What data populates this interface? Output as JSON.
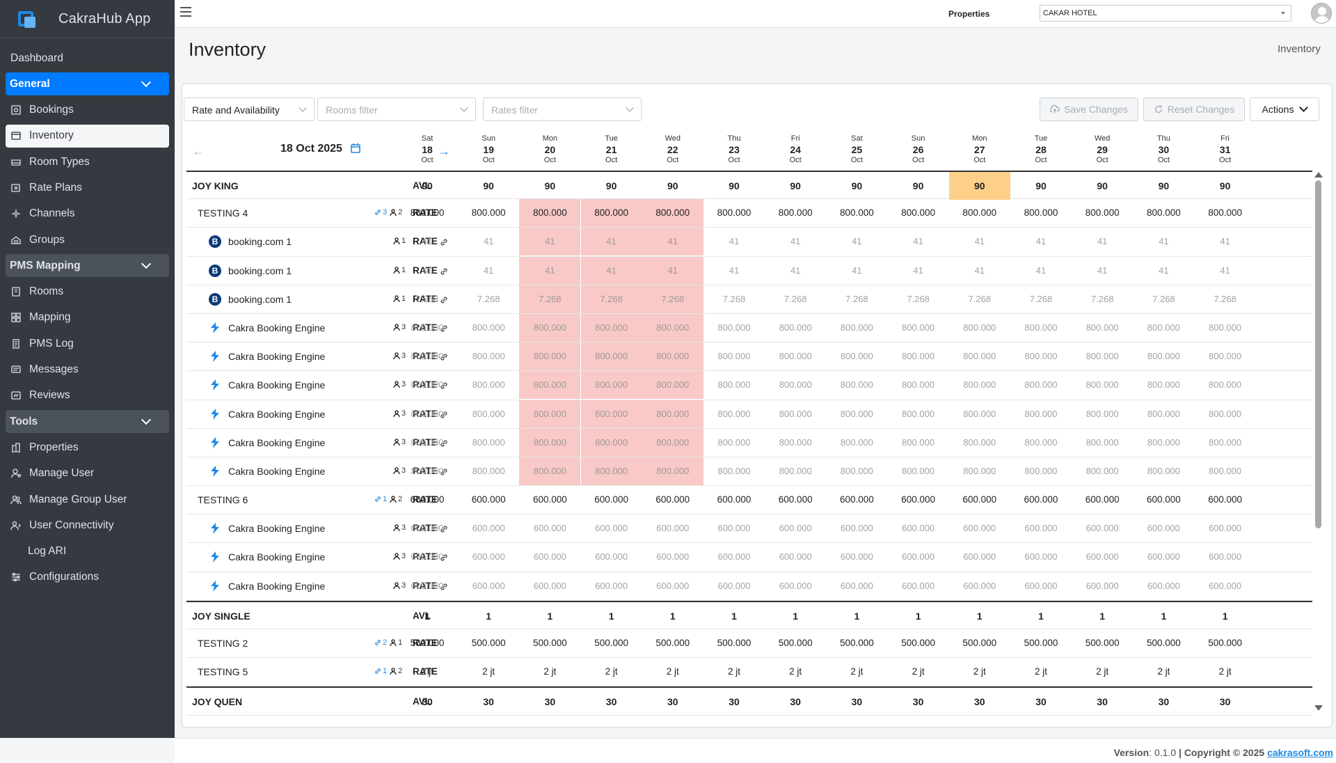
{
  "app": {
    "title": "CakraHub App",
    "logo_text": "CAKRA"
  },
  "sidebar": {
    "items": [
      {
        "label": "Dashboard",
        "type": "plain"
      },
      {
        "label": "General",
        "type": "header",
        "active": true
      },
      {
        "label": "Bookings",
        "type": "item",
        "icon": "bookings-icon"
      },
      {
        "label": "Inventory",
        "type": "item",
        "icon": "inventory-icon",
        "selected": true
      },
      {
        "label": "Room Types",
        "type": "item",
        "icon": "room-types-icon"
      },
      {
        "label": "Rate Plans",
        "type": "item",
        "icon": "rate-plans-icon"
      },
      {
        "label": "Channels",
        "type": "item",
        "icon": "channels-icon"
      },
      {
        "label": "Groups",
        "type": "item",
        "icon": "groups-icon"
      },
      {
        "label": "PMS Mapping",
        "type": "header"
      },
      {
        "label": "Rooms",
        "type": "item",
        "icon": "rooms-icon"
      },
      {
        "label": "Mapping",
        "type": "item",
        "icon": "mapping-icon"
      },
      {
        "label": "PMS Log",
        "type": "item",
        "icon": "pms-log-icon"
      },
      {
        "label": "Messages",
        "type": "item",
        "icon": "messages-icon"
      },
      {
        "label": "Reviews",
        "type": "item",
        "icon": "reviews-icon"
      },
      {
        "label": "Tools",
        "type": "header"
      },
      {
        "label": "Properties",
        "type": "item",
        "icon": "properties-icon"
      },
      {
        "label": "Manage User",
        "type": "item",
        "icon": "manage-user-icon"
      },
      {
        "label": "Manage Group User",
        "type": "item",
        "icon": "manage-group-user-icon"
      },
      {
        "label": "User Connectivity",
        "type": "item",
        "icon": "user-connectivity-icon"
      },
      {
        "label": "Log ARI",
        "type": "indent"
      },
      {
        "label": "Configurations",
        "type": "item",
        "icon": "configurations-icon"
      }
    ]
  },
  "topbar": {
    "properties_label": "Properties",
    "property_value": "CAKAR HOTEL"
  },
  "page": {
    "title": "Inventory",
    "breadcrumb": "Inventory"
  },
  "toolbar": {
    "view_select": "Rate and Availability",
    "rooms_filter_placeholder": "Rooms filter",
    "rates_filter_placeholder": "Rates filter",
    "save_label": "Save Changes",
    "reset_label": "Reset Changes",
    "actions_label": "Actions"
  },
  "date_nav": {
    "current_date": "18 Oct 2025",
    "prev_arrow": "←",
    "next_arrow": "→"
  },
  "days": [
    {
      "dow": "Sat",
      "day": "18",
      "mon": "Oct"
    },
    {
      "dow": "Sun",
      "day": "19",
      "mon": "Oct"
    },
    {
      "dow": "Mon",
      "day": "20",
      "mon": "Oct"
    },
    {
      "dow": "Tue",
      "day": "21",
      "mon": "Oct"
    },
    {
      "dow": "Wed",
      "day": "22",
      "mon": "Oct"
    },
    {
      "dow": "Thu",
      "day": "23",
      "mon": "Oct"
    },
    {
      "dow": "Fri",
      "day": "24",
      "mon": "Oct"
    },
    {
      "dow": "Sat",
      "day": "25",
      "mon": "Oct"
    },
    {
      "dow": "Sun",
      "day": "26",
      "mon": "Oct"
    },
    {
      "dow": "Mon",
      "day": "27",
      "mon": "Oct"
    },
    {
      "dow": "Tue",
      "day": "28",
      "mon": "Oct"
    },
    {
      "dow": "Wed",
      "day": "29",
      "mon": "Oct"
    },
    {
      "dow": "Thu",
      "day": "30",
      "mon": "Oct"
    },
    {
      "dow": "Fri",
      "day": "31",
      "mon": "Oct"
    }
  ],
  "colors": {
    "highlight_red": "#f8c9c6",
    "highlight_orange": "#fdd08a",
    "accent": "#007bff"
  },
  "grid": [
    {
      "kind": "AVL",
      "level": "avl",
      "name": "JOY KING",
      "values": [
        "90",
        "90",
        "90",
        "90",
        "90",
        "90",
        "90",
        "90",
        "90",
        "90",
        "90",
        "90",
        "90",
        "90"
      ],
      "orange": [
        9
      ]
    },
    {
      "kind": "RATE",
      "level": "parent",
      "name": "TESTING 4",
      "links": "3",
      "occupancy": "2",
      "values": [
        "800.000",
        "800.000",
        "800.000",
        "800.000",
        "800.000",
        "800.000",
        "800.000",
        "800.000",
        "800.000",
        "800.000",
        "800.000",
        "800.000",
        "800.000",
        "800.000"
      ],
      "red": [
        2,
        3,
        4
      ]
    },
    {
      "kind": "RATE",
      "level": "child",
      "channel": "booking",
      "name": "booking.com 1",
      "occupancy": "1",
      "values": [
        "41",
        "41",
        "41",
        "41",
        "41",
        "41",
        "41",
        "41",
        "41",
        "41",
        "41",
        "41",
        "41",
        "41"
      ],
      "red": [
        2,
        3,
        4
      ]
    },
    {
      "kind": "RATE",
      "level": "child",
      "channel": "booking",
      "name": "booking.com 1",
      "occupancy": "1",
      "values": [
        "41",
        "41",
        "41",
        "41",
        "41",
        "41",
        "41",
        "41",
        "41",
        "41",
        "41",
        "41",
        "41",
        "41"
      ],
      "red": [
        2,
        3,
        4
      ]
    },
    {
      "kind": "RATE",
      "level": "child",
      "channel": "booking",
      "name": "booking.com 1",
      "occupancy": "1",
      "values": [
        "7.268",
        "7.268",
        "7.268",
        "7.268",
        "7.268",
        "7.268",
        "7.268",
        "7.268",
        "7.268",
        "7.268",
        "7.268",
        "7.268",
        "7.268",
        "7.268"
      ],
      "red": [
        2,
        3,
        4
      ]
    },
    {
      "kind": "RATE",
      "level": "child",
      "channel": "cakra",
      "name": "Cakra Booking Engine",
      "occupancy": "3",
      "values": [
        "800.000",
        "800.000",
        "800.000",
        "800.000",
        "800.000",
        "800.000",
        "800.000",
        "800.000",
        "800.000",
        "800.000",
        "800.000",
        "800.000",
        "800.000",
        "800.000"
      ],
      "red": [
        2,
        3,
        4
      ]
    },
    {
      "kind": "RATE",
      "level": "child",
      "channel": "cakra",
      "name": "Cakra Booking Engine",
      "occupancy": "3",
      "values": [
        "800.000",
        "800.000",
        "800.000",
        "800.000",
        "800.000",
        "800.000",
        "800.000",
        "800.000",
        "800.000",
        "800.000",
        "800.000",
        "800.000",
        "800.000",
        "800.000"
      ],
      "red": [
        2,
        3,
        4
      ]
    },
    {
      "kind": "RATE",
      "level": "child",
      "channel": "cakra",
      "name": "Cakra Booking Engine",
      "occupancy": "3",
      "values": [
        "800.000",
        "800.000",
        "800.000",
        "800.000",
        "800.000",
        "800.000",
        "800.000",
        "800.000",
        "800.000",
        "800.000",
        "800.000",
        "800.000",
        "800.000",
        "800.000"
      ],
      "red": [
        2,
        3,
        4
      ]
    },
    {
      "kind": "RATE",
      "level": "child",
      "channel": "cakra",
      "name": "Cakra Booking Engine",
      "occupancy": "3",
      "values": [
        "800.000",
        "800.000",
        "800.000",
        "800.000",
        "800.000",
        "800.000",
        "800.000",
        "800.000",
        "800.000",
        "800.000",
        "800.000",
        "800.000",
        "800.000",
        "800.000"
      ],
      "red": [
        2,
        3,
        4
      ]
    },
    {
      "kind": "RATE",
      "level": "child",
      "channel": "cakra",
      "name": "Cakra Booking Engine",
      "occupancy": "3",
      "values": [
        "800.000",
        "800.000",
        "800.000",
        "800.000",
        "800.000",
        "800.000",
        "800.000",
        "800.000",
        "800.000",
        "800.000",
        "800.000",
        "800.000",
        "800.000",
        "800.000"
      ],
      "red": [
        2,
        3,
        4
      ]
    },
    {
      "kind": "RATE",
      "level": "child",
      "channel": "cakra",
      "name": "Cakra Booking Engine",
      "occupancy": "3",
      "values": [
        "800.000",
        "800.000",
        "800.000",
        "800.000",
        "800.000",
        "800.000",
        "800.000",
        "800.000",
        "800.000",
        "800.000",
        "800.000",
        "800.000",
        "800.000",
        "800.000"
      ],
      "red": [
        2,
        3,
        4
      ]
    },
    {
      "kind": "RATE",
      "level": "parent",
      "name": "TESTING 6",
      "links": "1",
      "occupancy": "2",
      "values": [
        "600.000",
        "600.000",
        "600.000",
        "600.000",
        "600.000",
        "600.000",
        "600.000",
        "600.000",
        "600.000",
        "600.000",
        "600.000",
        "600.000",
        "600.000",
        "600.000"
      ]
    },
    {
      "kind": "RATE",
      "level": "child",
      "channel": "cakra",
      "name": "Cakra Booking Engine",
      "occupancy": "3",
      "values": [
        "600.000",
        "600.000",
        "600.000",
        "600.000",
        "600.000",
        "600.000",
        "600.000",
        "600.000",
        "600.000",
        "600.000",
        "600.000",
        "600.000",
        "600.000",
        "600.000"
      ]
    },
    {
      "kind": "RATE",
      "level": "child",
      "channel": "cakra",
      "name": "Cakra Booking Engine",
      "occupancy": "3",
      "values": [
        "600.000",
        "600.000",
        "600.000",
        "600.000",
        "600.000",
        "600.000",
        "600.000",
        "600.000",
        "600.000",
        "600.000",
        "600.000",
        "600.000",
        "600.000",
        "600.000"
      ]
    },
    {
      "kind": "RATE",
      "level": "child",
      "channel": "cakra",
      "name": "Cakra Booking Engine",
      "occupancy": "3",
      "values": [
        "600.000",
        "600.000",
        "600.000",
        "600.000",
        "600.000",
        "600.000",
        "600.000",
        "600.000",
        "600.000",
        "600.000",
        "600.000",
        "600.000",
        "600.000",
        "600.000"
      ]
    },
    {
      "kind": "AVL",
      "level": "avl",
      "name": "JOY SINGLE",
      "values": [
        "1",
        "1",
        "1",
        "1",
        "1",
        "1",
        "1",
        "1",
        "1",
        "1",
        "1",
        "1",
        "1",
        "1"
      ]
    },
    {
      "kind": "RATE",
      "level": "parent",
      "name": "TESTING 2",
      "links": "2",
      "occupancy": "1",
      "values": [
        "500.000",
        "500.000",
        "500.000",
        "500.000",
        "500.000",
        "500.000",
        "500.000",
        "500.000",
        "500.000",
        "500.000",
        "500.000",
        "500.000",
        "500.000",
        "500.000"
      ]
    },
    {
      "kind": "RATE",
      "level": "parent",
      "name": "TESTING 5",
      "links": "1",
      "occupancy": "2",
      "values": [
        "2 jt",
        "2 jt",
        "2 jt",
        "2 jt",
        "2 jt",
        "2 jt",
        "2 jt",
        "2 jt",
        "2 jt",
        "2 jt",
        "2 jt",
        "2 jt",
        "2 jt",
        "2 jt"
      ]
    },
    {
      "kind": "AVL",
      "level": "avl",
      "name": "JOY QUEN",
      "values": [
        "30",
        "30",
        "30",
        "30",
        "30",
        "30",
        "30",
        "30",
        "30",
        "30",
        "30",
        "30",
        "30",
        "30"
      ]
    }
  ],
  "footer": {
    "version_label": "Version",
    "version": ": 0.1.0",
    "copyright": "| Copyright © 2025",
    "link": "cakrasoft.com"
  }
}
